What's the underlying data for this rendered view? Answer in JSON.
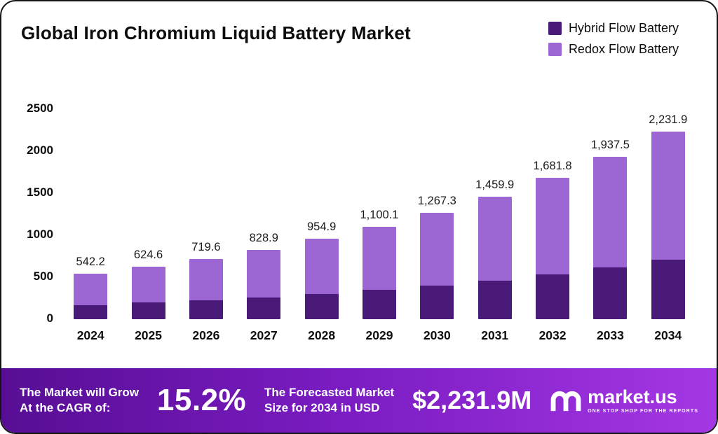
{
  "title": "Global Iron Chromium Liquid Battery Market",
  "legend": [
    {
      "label": "Hybrid Flow Battery",
      "color": "#4a1a78"
    },
    {
      "label": "Redox Flow Battery",
      "color": "#9c66d3"
    }
  ],
  "chart_data": {
    "type": "bar",
    "stacked": true,
    "title": "Global Iron Chromium Liquid Battery Market",
    "categories": [
      "2024",
      "2025",
      "2026",
      "2027",
      "2028",
      "2029",
      "2030",
      "2031",
      "2032",
      "2033",
      "2034"
    ],
    "series": [
      {
        "name": "Hybrid Flow Battery",
        "color": "#4a1a78",
        "values": [
          170,
          196,
          226,
          261,
          301,
          347,
          400,
          461,
          532,
          613,
          707
        ]
      },
      {
        "name": "Redox Flow Battery",
        "color": "#9c66d3",
        "values": [
          372.2,
          428.6,
          493.6,
          567.9,
          653.9,
          753.1,
          867.3,
          998.9,
          1149.8,
          1324.5,
          1524.9
        ]
      }
    ],
    "totals": [
      542.2,
      624.6,
      719.6,
      828.9,
      954.9,
      1100.1,
      1267.3,
      1459.9,
      1681.8,
      1937.5,
      2231.9
    ],
    "total_labels": [
      "542.2",
      "624.6",
      "719.6",
      "828.9",
      "954.9",
      "1,100.1",
      "1,267.3",
      "1,459.9",
      "1,681.8",
      "1,937.5",
      "2,231.9"
    ],
    "xlabel": "",
    "ylabel": "",
    "ylim": [
      0,
      2500
    ],
    "yticks": [
      0,
      500,
      1000,
      1500,
      2000,
      2500
    ],
    "grid": false,
    "legend_position": "top-right"
  },
  "banner": {
    "cagr_line1": "The Market will Grow",
    "cagr_line2": "At the CAGR of:",
    "cagr_value": "15.2%",
    "forecast_line1": "The Forecasted Market",
    "forecast_line2": "Size for 2034 in USD",
    "forecast_value": "$2,231.9M",
    "logo_text": "market.us",
    "logo_tagline": "ONE STOP SHOP FOR THE REPORTS",
    "gradient_left": "#570e94",
    "gradient_right": "#a437e4"
  }
}
